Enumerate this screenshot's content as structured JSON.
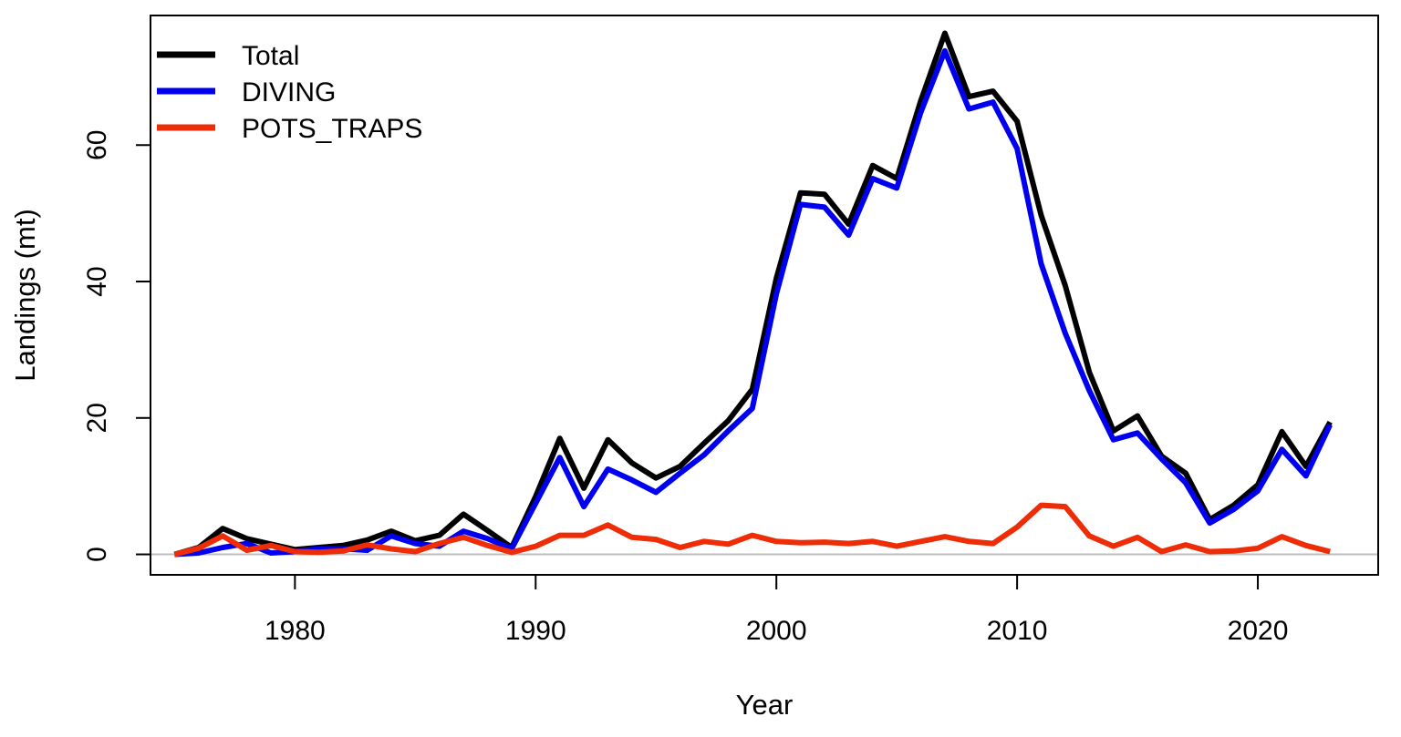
{
  "chart_data": {
    "type": "line",
    "xlabel": "Year",
    "ylabel": "Landings (mt)",
    "xlim": [
      1974,
      2025
    ],
    "ylim": [
      -3,
      79
    ],
    "x_ticks": [
      1980,
      1990,
      2000,
      2010,
      2020
    ],
    "y_ticks": [
      0,
      20,
      40,
      60
    ],
    "zero_line": true,
    "grid": false,
    "legend_position": "top-left",
    "x": [
      1975,
      1976,
      1977,
      1978,
      1979,
      1980,
      1981,
      1982,
      1983,
      1984,
      1985,
      1986,
      1987,
      1988,
      1989,
      1990,
      1991,
      1992,
      1993,
      1994,
      1995,
      1996,
      1997,
      1998,
      1999,
      2000,
      2001,
      2002,
      2003,
      2004,
      2005,
      2006,
      2007,
      2008,
      2009,
      2010,
      2011,
      2012,
      2013,
      2014,
      2015,
      2016,
      2017,
      2018,
      2019,
      2020,
      2021,
      2022,
      2023
    ],
    "series": [
      {
        "name": "Total",
        "color": "#000000",
        "values": [
          0.0,
          1.0,
          3.8,
          2.3,
          1.5,
          0.7,
          1.0,
          1.3,
          2.1,
          3.4,
          2.0,
          2.8,
          5.9,
          3.5,
          1.0,
          8.5,
          17.0,
          9.7,
          16.8,
          13.4,
          11.2,
          12.9,
          16.3,
          19.6,
          24.2,
          40.5,
          53.0,
          52.8,
          48.4,
          57.0,
          55.1,
          66.5,
          76.4,
          67.1,
          67.9,
          63.5,
          49.7,
          39.4,
          26.7,
          18.1,
          20.3,
          14.4,
          11.9,
          5.1,
          7.2,
          10.2,
          18.0,
          12.9,
          19.4
        ]
      },
      {
        "name": "DIVING",
        "color": "#0000ee",
        "values": [
          0.0,
          0.2,
          1.0,
          1.6,
          0.2,
          0.4,
          0.8,
          0.8,
          0.6,
          2.7,
          1.6,
          1.2,
          3.4,
          2.3,
          0.8,
          7.5,
          14.2,
          7.0,
          12.5,
          10.9,
          9.1,
          11.9,
          14.6,
          18.1,
          21.4,
          38.2,
          51.3,
          50.9,
          46.8,
          55.1,
          53.7,
          64.8,
          73.8,
          65.3,
          66.3,
          59.5,
          42.6,
          32.4,
          24.0,
          16.8,
          17.8,
          14.0,
          10.5,
          4.6,
          6.6,
          9.3,
          15.4,
          11.5,
          19.0
        ]
      },
      {
        "name": "POTS_TRAPS",
        "color": "#ee2c06",
        "values": [
          0.0,
          0.9,
          2.7,
          0.6,
          1.3,
          0.4,
          0.3,
          0.5,
          1.4,
          0.8,
          0.4,
          1.6,
          2.5,
          1.3,
          0.3,
          1.2,
          2.8,
          2.8,
          4.3,
          2.5,
          2.2,
          1.0,
          1.9,
          1.5,
          2.8,
          1.9,
          1.7,
          1.8,
          1.6,
          1.9,
          1.2,
          1.9,
          2.6,
          1.9,
          1.6,
          4.0,
          7.2,
          7.0,
          2.7,
          1.2,
          2.5,
          0.4,
          1.4,
          0.4,
          0.5,
          0.9,
          2.6,
          1.3,
          0.4
        ]
      }
    ]
  }
}
